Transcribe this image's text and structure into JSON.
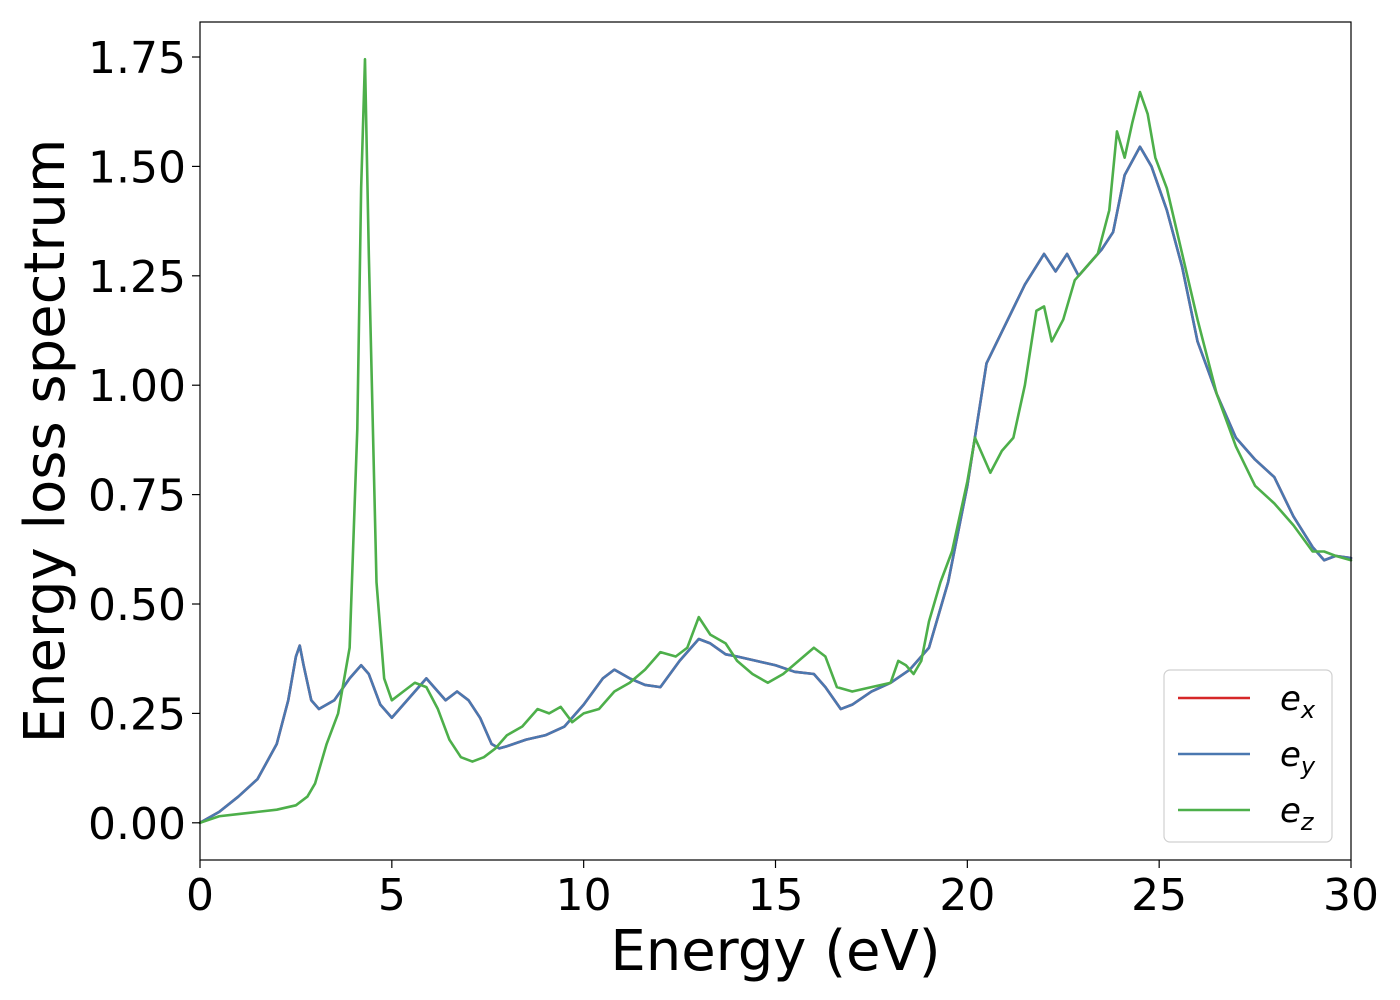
{
  "chart_data": {
    "type": "line",
    "xlabel": "Energy (eV)",
    "ylabel": "Energy loss spectrum",
    "xlim": [
      0,
      30
    ],
    "ylim": [
      -0.085,
      1.83
    ],
    "xticks": [
      0,
      5,
      10,
      15,
      20,
      25,
      30
    ],
    "xtick_labels": [
      "0",
      "5",
      "10",
      "15",
      "20",
      "25",
      "30"
    ],
    "yticks": [
      0.0,
      0.25,
      0.5,
      0.75,
      1.0,
      1.25,
      1.5,
      1.75
    ],
    "ytick_labels": [
      "0.00",
      "0.25",
      "0.50",
      "0.75",
      "1.00",
      "1.25",
      "1.50",
      "1.75"
    ],
    "grid": false,
    "legend_position": "lower-right",
    "series": [
      {
        "name": "e",
        "subscript": "x",
        "color": "#d62728",
        "x": [
          0,
          0.5,
          1,
          1.5,
          2,
          2.3,
          2.5,
          2.6,
          2.7,
          2.9,
          3.1,
          3.5,
          3.9,
          4.2,
          4.4,
          4.7,
          5.0,
          5.3,
          5.6,
          5.9,
          6.1,
          6.4,
          6.7,
          7.0,
          7.3,
          7.6,
          7.8,
          8.0,
          8.5,
          9.0,
          9.5,
          10.0,
          10.5,
          10.8,
          11.2,
          11.6,
          12.0,
          12.5,
          13.0,
          13.3,
          13.7,
          14.0,
          14.5,
          15.0,
          15.5,
          16.0,
          16.3,
          16.7,
          17.0,
          17.5,
          18.0,
          18.5,
          19.0,
          19.5,
          20.0,
          20.5,
          21.0,
          21.5,
          22.0,
          22.3,
          22.6,
          22.9,
          23.2,
          23.5,
          23.8,
          24.1,
          24.5,
          24.8,
          25.2,
          25.6,
          26.0,
          26.5,
          27.0,
          27.5,
          28.0,
          28.5,
          29.0,
          29.3,
          29.6,
          30.0
        ],
        "values": [
          0,
          0.025,
          0.06,
          0.1,
          0.18,
          0.28,
          0.38,
          0.405,
          0.36,
          0.28,
          0.26,
          0.28,
          0.33,
          0.36,
          0.34,
          0.27,
          0.24,
          0.27,
          0.3,
          0.33,
          0.31,
          0.28,
          0.3,
          0.28,
          0.24,
          0.18,
          0.17,
          0.175,
          0.19,
          0.2,
          0.22,
          0.27,
          0.33,
          0.35,
          0.33,
          0.315,
          0.31,
          0.37,
          0.42,
          0.41,
          0.385,
          0.38,
          0.37,
          0.36,
          0.345,
          0.34,
          0.31,
          0.26,
          0.27,
          0.3,
          0.32,
          0.35,
          0.4,
          0.55,
          0.77,
          1.05,
          1.14,
          1.23,
          1.3,
          1.26,
          1.3,
          1.25,
          1.28,
          1.31,
          1.35,
          1.48,
          1.545,
          1.5,
          1.4,
          1.27,
          1.1,
          0.98,
          0.88,
          0.83,
          0.79,
          0.7,
          0.63,
          0.6,
          0.61,
          0.605
        ]
      },
      {
        "name": "e",
        "subscript": "y",
        "color": "#4a78b0",
        "x": [
          0,
          0.5,
          1,
          1.5,
          2,
          2.3,
          2.5,
          2.6,
          2.7,
          2.9,
          3.1,
          3.5,
          3.9,
          4.2,
          4.4,
          4.7,
          5.0,
          5.3,
          5.6,
          5.9,
          6.1,
          6.4,
          6.7,
          7.0,
          7.3,
          7.6,
          7.8,
          8.0,
          8.5,
          9.0,
          9.5,
          10.0,
          10.5,
          10.8,
          11.2,
          11.6,
          12.0,
          12.5,
          13.0,
          13.3,
          13.7,
          14.0,
          14.5,
          15.0,
          15.5,
          16.0,
          16.3,
          16.7,
          17.0,
          17.5,
          18.0,
          18.5,
          19.0,
          19.5,
          20.0,
          20.5,
          21.0,
          21.5,
          22.0,
          22.3,
          22.6,
          22.9,
          23.2,
          23.5,
          23.8,
          24.1,
          24.5,
          24.8,
          25.2,
          25.6,
          26.0,
          26.5,
          27.0,
          27.5,
          28.0,
          28.5,
          29.0,
          29.3,
          29.6,
          30.0
        ],
        "values": [
          0,
          0.025,
          0.06,
          0.1,
          0.18,
          0.28,
          0.38,
          0.405,
          0.36,
          0.28,
          0.26,
          0.28,
          0.33,
          0.36,
          0.34,
          0.27,
          0.24,
          0.27,
          0.3,
          0.33,
          0.31,
          0.28,
          0.3,
          0.28,
          0.24,
          0.18,
          0.17,
          0.175,
          0.19,
          0.2,
          0.22,
          0.27,
          0.33,
          0.35,
          0.33,
          0.315,
          0.31,
          0.37,
          0.42,
          0.41,
          0.385,
          0.38,
          0.37,
          0.36,
          0.345,
          0.34,
          0.31,
          0.26,
          0.27,
          0.3,
          0.32,
          0.35,
          0.4,
          0.55,
          0.77,
          1.05,
          1.14,
          1.23,
          1.3,
          1.26,
          1.3,
          1.25,
          1.28,
          1.31,
          1.35,
          1.48,
          1.545,
          1.5,
          1.4,
          1.27,
          1.1,
          0.98,
          0.88,
          0.83,
          0.79,
          0.7,
          0.63,
          0.6,
          0.61,
          0.605
        ]
      },
      {
        "name": "e",
        "subscript": "z",
        "color": "#4daf4a",
        "x": [
          0,
          0.5,
          1,
          1.5,
          2,
          2.5,
          2.8,
          3.0,
          3.3,
          3.6,
          3.9,
          4.1,
          4.2,
          4.3,
          4.4,
          4.6,
          4.8,
          5.0,
          5.3,
          5.6,
          5.9,
          6.2,
          6.5,
          6.8,
          7.1,
          7.4,
          7.7,
          8.0,
          8.4,
          8.8,
          9.1,
          9.4,
          9.7,
          10.0,
          10.4,
          10.8,
          11.2,
          11.6,
          12.0,
          12.4,
          12.7,
          13.0,
          13.3,
          13.7,
          14.0,
          14.4,
          14.8,
          15.2,
          15.6,
          16.0,
          16.3,
          16.6,
          17.0,
          17.5,
          18.0,
          18.2,
          18.4,
          18.6,
          18.8,
          19.0,
          19.3,
          19.6,
          20.0,
          20.2,
          20.4,
          20.6,
          20.9,
          21.2,
          21.5,
          21.8,
          22.0,
          22.2,
          22.5,
          22.8,
          23.1,
          23.4,
          23.7,
          23.9,
          24.1,
          24.3,
          24.5,
          24.7,
          24.9,
          25.2,
          25.6,
          26.0,
          26.5,
          27.0,
          27.5,
          28.0,
          28.5,
          29.0,
          29.3,
          29.6,
          30.0
        ],
        "values": [
          0,
          0.015,
          0.02,
          0.025,
          0.03,
          0.04,
          0.06,
          0.09,
          0.18,
          0.25,
          0.4,
          0.9,
          1.45,
          1.745,
          1.3,
          0.55,
          0.33,
          0.28,
          0.3,
          0.32,
          0.31,
          0.26,
          0.19,
          0.15,
          0.14,
          0.15,
          0.17,
          0.2,
          0.22,
          0.26,
          0.25,
          0.265,
          0.23,
          0.25,
          0.26,
          0.3,
          0.32,
          0.35,
          0.39,
          0.38,
          0.4,
          0.47,
          0.43,
          0.41,
          0.37,
          0.34,
          0.32,
          0.34,
          0.37,
          0.4,
          0.38,
          0.31,
          0.3,
          0.31,
          0.32,
          0.37,
          0.36,
          0.34,
          0.37,
          0.46,
          0.55,
          0.62,
          0.78,
          0.88,
          0.84,
          0.8,
          0.85,
          0.88,
          1.0,
          1.17,
          1.18,
          1.1,
          1.15,
          1.24,
          1.27,
          1.3,
          1.4,
          1.58,
          1.52,
          1.6,
          1.67,
          1.62,
          1.52,
          1.45,
          1.3,
          1.15,
          0.98,
          0.86,
          0.77,
          0.73,
          0.68,
          0.62,
          0.62,
          0.61,
          0.6
        ]
      }
    ]
  }
}
